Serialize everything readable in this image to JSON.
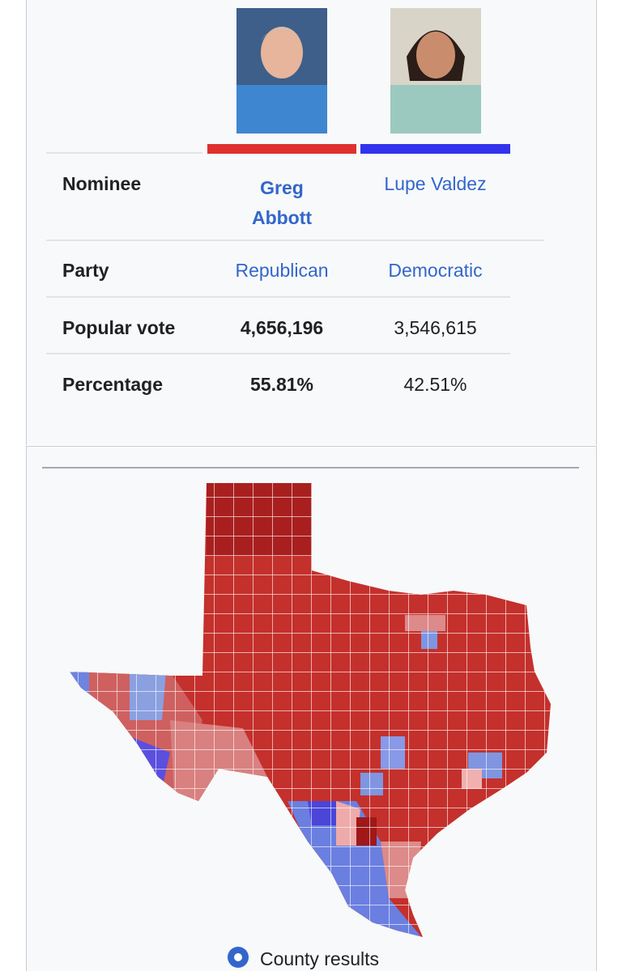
{
  "table": {
    "rows": [
      [
        "Nominee",
        "Greg Abbott",
        "Lupe Valdez"
      ],
      [
        "Party",
        "Republican",
        "Democratic"
      ],
      [
        "Popular vote",
        "4,656,196",
        "3,546,615"
      ],
      [
        "Percentage",
        "55.81%",
        "42.51%"
      ]
    ]
  },
  "map": {
    "caption": "County results"
  }
}
